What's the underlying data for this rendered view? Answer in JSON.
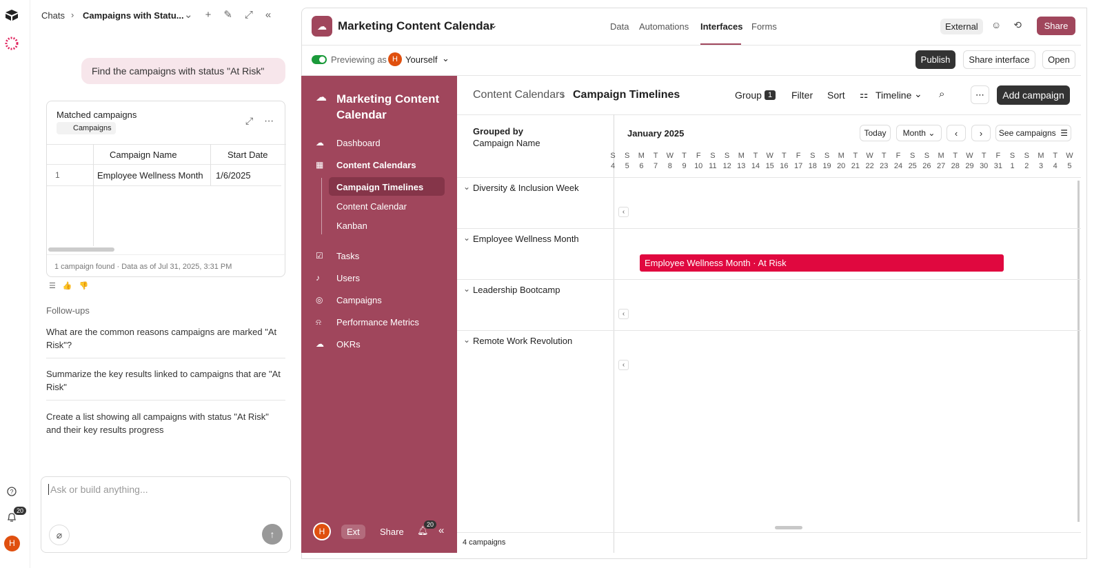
{
  "left_rail": {
    "notification_count": "20",
    "avatar": "H"
  },
  "chat": {
    "breadcrumb": [
      "Chats",
      "Campaigns with Statu..."
    ],
    "user_message": "Find the campaigns with status \"At Risk\"",
    "result_card": {
      "title": "Matched campaigns",
      "source": "Campaigns",
      "columns": [
        "Campaign Name",
        "Start Date"
      ],
      "rows": [
        [
          "1",
          "Employee Wellness Month",
          "1/6/2025"
        ]
      ],
      "footer": "1 campaign found · Data as of Jul 31, 2025, 3:31 PM"
    },
    "followups_label": "Follow-ups",
    "followups": [
      "What are the common reasons campaigns are marked \"At Risk\"?",
      "Summarize the key results linked to campaigns that are \"At Risk\"",
      "Create a list showing all campaigns with status \"At Risk\" and their key results progress"
    ],
    "input_placeholder": "Ask or build anything..."
  },
  "app": {
    "title": "Marketing Content Calendar",
    "tabs": [
      "Data",
      "Automations",
      "Interfaces",
      "Forms"
    ],
    "external": "External",
    "share": "Share",
    "preview_label": "Previewing as",
    "preview_avatar": "H",
    "preview_user": "Yourself",
    "publish": "Publish",
    "share_interface": "Share interface",
    "open": "Open"
  },
  "sidebar": {
    "title": "Marketing Content Calendar",
    "items": [
      "Dashboard",
      "Content Calendars",
      "Campaign Timelines",
      "Content Calendar",
      "Kanban",
      "Tasks",
      "Users",
      "Campaigns",
      "Performance Metrics",
      "OKRs"
    ],
    "footer": {
      "avatar": "H",
      "ext": "Ext",
      "share": "Share",
      "notifications": "20"
    }
  },
  "content": {
    "breadcrumb": [
      "Content Calendars",
      "Campaign Timelines"
    ],
    "group": "Group",
    "group_count": "1",
    "filter": "Filter",
    "sort": "Sort",
    "view": "Timeline",
    "add": "Add campaign",
    "grouped_by_label": "Grouped by",
    "grouped_by": "Campaign Name",
    "month": "January 2025",
    "today": "Today",
    "scale": "Month",
    "see": "See campaigns",
    "weekdays": [
      "S",
      "S",
      "M",
      "T",
      "W",
      "T",
      "F",
      "S",
      "S",
      "M",
      "T",
      "W",
      "T",
      "F",
      "S",
      "S",
      "M",
      "T",
      "W",
      "T",
      "F",
      "S",
      "S",
      "M",
      "T",
      "W",
      "T",
      "F",
      "S",
      "S",
      "M",
      "T",
      "W"
    ],
    "dates": [
      "4",
      "5",
      "6",
      "7",
      "8",
      "9",
      "10",
      "11",
      "12",
      "13",
      "14",
      "15",
      "16",
      "17",
      "18",
      "19",
      "20",
      "21",
      "22",
      "23",
      "24",
      "25",
      "26",
      "27",
      "28",
      "29",
      "30",
      "31",
      "1",
      "2",
      "3",
      "4",
      "5"
    ],
    "groups": [
      "Diversity & Inclusion Week",
      "Employee Wellness Month",
      "Leadership Bootcamp",
      "Remote Work Revolution"
    ],
    "bar": "Employee Wellness Month · At Risk",
    "count": "4 campaigns"
  }
}
